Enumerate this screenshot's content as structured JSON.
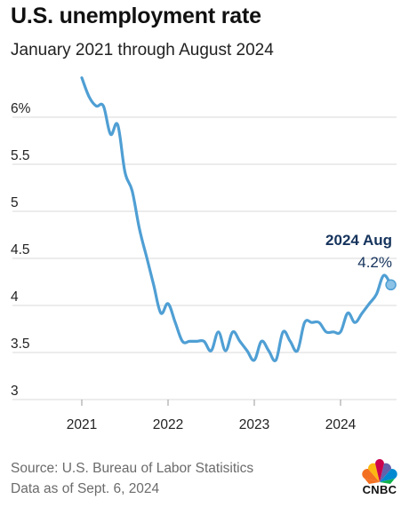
{
  "header": {
    "title": "U.S. unemployment rate",
    "subtitle": "January 2021 through August 2024"
  },
  "footer": {
    "source_line": "Source: U.S. Bureau of Labor Statisitics",
    "date_line": "Data as of Sept. 6, 2024",
    "logo_text": "CNBC"
  },
  "colors": {
    "line": "#4f9fd4",
    "grid": "#d9d9d9",
    "annotation": "#15335c",
    "tick_text": "#222222"
  },
  "chart_data": {
    "type": "line",
    "title": "U.S. unemployment rate",
    "subtitle": "January 2021 through August 2024",
    "xlabel": "",
    "ylabel": "",
    "ylim": [
      3,
      6.3
    ],
    "y_ticks": [
      {
        "value": 6,
        "label": "6%"
      },
      {
        "value": 5.5,
        "label": "5.5"
      },
      {
        "value": 5,
        "label": "5"
      },
      {
        "value": 4.5,
        "label": "4.5"
      },
      {
        "value": 4,
        "label": "4"
      },
      {
        "value": 3.5,
        "label": "3.5"
      },
      {
        "value": 3,
        "label": "3"
      }
    ],
    "x_ticks": [
      "2021",
      "2022",
      "2023",
      "2024"
    ],
    "grid": true,
    "series": [
      {
        "x": [
          "2021-01",
          "2021-02",
          "2021-03",
          "2021-04",
          "2021-05",
          "2021-06",
          "2021-07",
          "2021-08",
          "2021-09",
          "2021-10",
          "2021-11",
          "2021-12",
          "2022-01",
          "2022-02",
          "2022-03",
          "2022-04",
          "2022-05",
          "2022-06",
          "2022-07",
          "2022-08",
          "2022-09",
          "2022-10",
          "2022-11",
          "2022-12",
          "2023-01",
          "2023-02",
          "2023-03",
          "2023-04",
          "2023-05",
          "2023-06",
          "2023-07",
          "2023-08",
          "2023-09",
          "2023-10",
          "2023-11",
          "2023-12",
          "2024-01",
          "2024-02",
          "2024-03",
          "2024-04",
          "2024-05",
          "2024-06",
          "2024-07",
          "2024-08"
        ],
        "values": [
          6.4,
          6.2,
          6.1,
          6.1,
          5.8,
          5.9,
          5.4,
          5.2,
          4.8,
          4.5,
          4.2,
          3.9,
          4.0,
          3.8,
          3.6,
          3.6,
          3.6,
          3.6,
          3.5,
          3.7,
          3.5,
          3.7,
          3.6,
          3.5,
          3.4,
          3.6,
          3.5,
          3.4,
          3.7,
          3.6,
          3.5,
          3.8,
          3.8,
          3.8,
          3.7,
          3.7,
          3.7,
          3.9,
          3.8,
          3.9,
          4.0,
          4.1,
          4.3,
          4.2
        ]
      }
    ],
    "annotation": {
      "label": "2024 Aug",
      "value_text": "4.2%",
      "x": "2024-08",
      "y": 4.2
    }
  }
}
